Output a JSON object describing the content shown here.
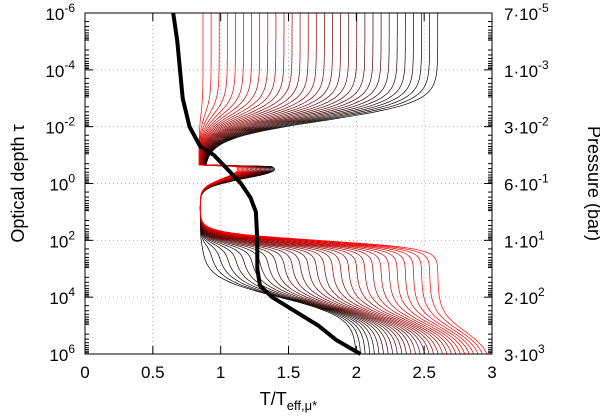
{
  "chart_data": {
    "type": "line",
    "xlabel": "T/T",
    "xlabel_sub": "eff,μ*",
    "ylabel": "Optical depth τ",
    "y2label": "Pressure (bar)",
    "xlim": [
      0,
      3
    ],
    "ylim_log10": [
      -6,
      6
    ],
    "y_inverted": true,
    "y_scale": "log",
    "grid": true,
    "x_ticks": [
      0,
      0.5,
      1,
      1.5,
      2,
      2.5,
      3
    ],
    "x_tick_labels": [
      "0",
      "0.5",
      "1",
      "1.5",
      "2",
      "2.5",
      "3"
    ],
    "y_ticks": [
      -6,
      -4,
      -2,
      0,
      2,
      4,
      6
    ],
    "y_tick_labels": [
      {
        "base": "10",
        "exp": "-6"
      },
      {
        "base": "10",
        "exp": "-4"
      },
      {
        "base": "10",
        "exp": "-2"
      },
      {
        "base": "10",
        "exp": "0"
      },
      {
        "base": "10",
        "exp": "2"
      },
      {
        "base": "10",
        "exp": "4"
      },
      {
        "base": "10",
        "exp": "6"
      }
    ],
    "y2_tick_labels": [
      {
        "mant": "7·10",
        "exp": "-5"
      },
      {
        "mant": "1·10",
        "exp": "-3"
      },
      {
        "mant": "3·10",
        "exp": "-2"
      },
      {
        "mant": "6·10",
        "exp": "-1"
      },
      {
        "mant": "1·10",
        "exp": "1"
      },
      {
        "mant": "2·10",
        "exp": "2"
      },
      {
        "mant": "3·10",
        "exp": "3"
      }
    ],
    "family": {
      "count": 30,
      "color_start": "#000000",
      "color_end": "#ff0000",
      "description_curve": "thin curves: T profile vs log tau",
      "upper_x_start": 2.6,
      "upper_x_end": 0.87,
      "upper_x_base_start": 0.88,
      "upper_x_base_end": 0.84,
      "lower_x_start": 0.86,
      "lower_x_end": 2.6,
      "lower_x_base": 0.85,
      "lower_tail_x_start": 2.0,
      "lower_tail_x_end": 3.0
    },
    "thick_curve": {
      "color": "#000000",
      "points": [
        [
          0.65,
          -6
        ],
        [
          0.68,
          -5
        ],
        [
          0.7,
          -4
        ],
        [
          0.72,
          -3
        ],
        [
          0.77,
          -2
        ],
        [
          0.85,
          -1.3
        ],
        [
          0.95,
          -1
        ],
        [
          1.05,
          -0.5
        ],
        [
          1.15,
          0
        ],
        [
          1.22,
          0.5
        ],
        [
          1.26,
          1
        ],
        [
          1.27,
          2
        ],
        [
          1.27,
          3
        ],
        [
          1.29,
          3.6
        ],
        [
          1.38,
          4.0
        ],
        [
          1.55,
          4.5
        ],
        [
          1.72,
          5.0
        ],
        [
          1.85,
          5.5
        ],
        [
          2.03,
          6
        ]
      ]
    }
  }
}
